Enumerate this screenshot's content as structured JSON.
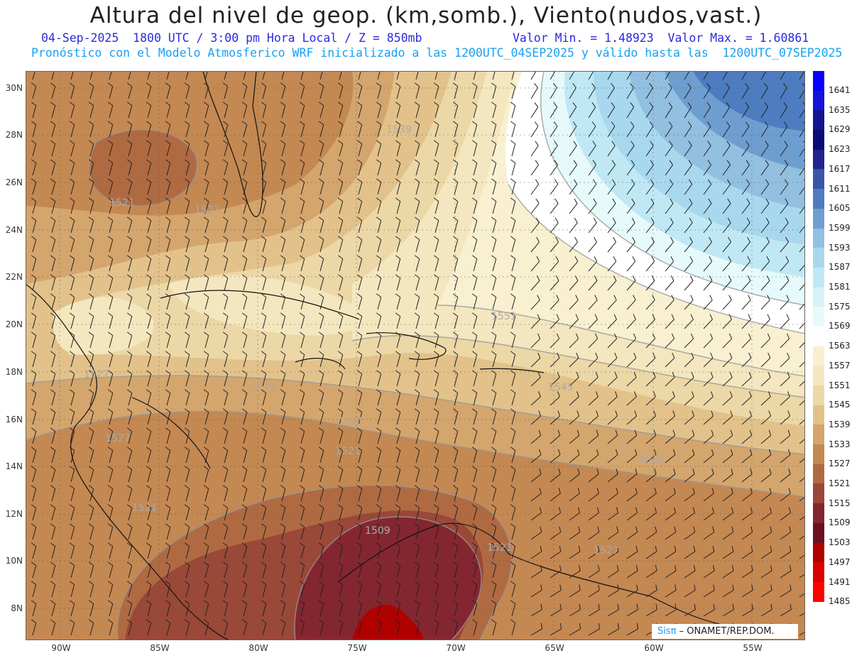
{
  "title": "Altura del nivel de geop. (km,somb.), Viento(nudos,vast.)",
  "subtitle_date": "04-Sep-2025  1800 UTC / 3:00 pm Hora Local / Z = 850mb",
  "subtitle_minmax": "Valor Min. = 1.48923  Valor Max. = 1.60861",
  "subtitle_model": "Pronóstico con el Modelo Atmosferico WRF inicializado a las 1200UTC_04SEP2025 y válido hasta las  1200UTC_07SEP2025",
  "lat_labels": [
    "30N",
    "28N",
    "26N",
    "24N",
    "22N",
    "20N",
    "18N",
    "16N",
    "14N",
    "12N",
    "10N",
    "8N"
  ],
  "lon_labels": [
    "90W",
    "85W",
    "80W",
    "75W",
    "70W",
    "65W",
    "60W",
    "55W"
  ],
  "contour_labels": [
    "1539",
    "1521",
    "1527",
    "1551",
    "1539",
    "1545",
    "1521",
    "1527",
    "1509",
    "1521",
    "1527",
    "1527",
    "1521",
    "1521",
    "1539"
  ],
  "colorbar": {
    "levels": [
      "1641",
      "1635",
      "1629",
      "1623",
      "1617",
      "1611",
      "1605",
      "1599",
      "1593",
      "1587",
      "1581",
      "1575",
      "1569",
      "1563",
      "1557",
      "1551",
      "1545",
      "1539",
      "1533",
      "1527",
      "1521",
      "1515",
      "1509",
      "1503",
      "1497",
      "1491",
      "1485"
    ],
    "colors": [
      "#0a00ff",
      "#1414d8",
      "#141490",
      "#0a0a78",
      "#23238f",
      "#3a55a8",
      "#4d7cc0",
      "#6e9ed0",
      "#93bfe0",
      "#a8d8ee",
      "#c0e8f4",
      "#d6f2f8",
      "#e6fafc",
      "#ffffff",
      "#f8f0d0",
      "#f4e6be",
      "#ecd7a6",
      "#e2c28a",
      "#d4a56c",
      "#c48852",
      "#b06a42",
      "#9a4838",
      "#842630",
      "#6e1020",
      "#b00000",
      "#d80000",
      "#ff0000"
    ]
  },
  "logo": {
    "brand": "Sisπ",
    "text": "– ONAMET/REP.DOM."
  }
}
